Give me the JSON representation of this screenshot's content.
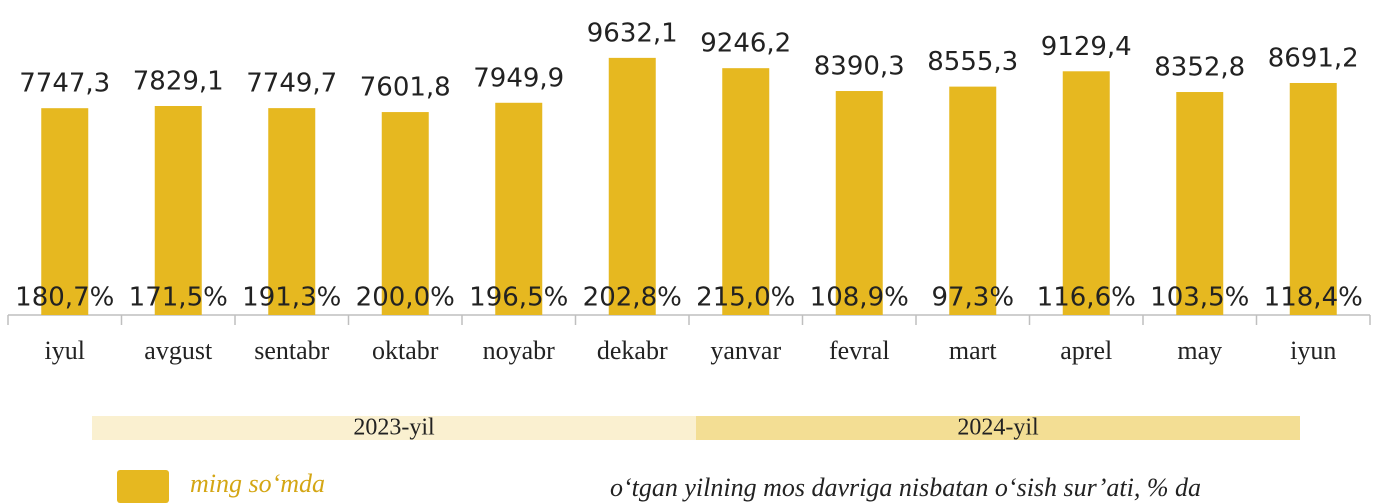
{
  "chart_data": {
    "type": "bar",
    "categories": [
      "iyul",
      "avgust",
      "sentabr",
      "oktabr",
      "noyabr",
      "dekabr",
      "yanvar",
      "fevral",
      "mart",
      "aprel",
      "may",
      "iyun"
    ],
    "series": [
      {
        "name": "ming so‘mda",
        "color": "#E6B820",
        "values": [
          7747.3,
          7829.1,
          7749.7,
          7601.8,
          7949.9,
          9632.1,
          9246.2,
          8390.3,
          8555.3,
          9129.4,
          8352.8,
          8691.2
        ],
        "value_labels": [
          "7747,3",
          "7829,1",
          "7749,7",
          "7601,8",
          "7949,9",
          "9632,1",
          "9246,2",
          "8390,3",
          "8555,3",
          "9129,4",
          "8352,8",
          "8691,2"
        ]
      },
      {
        "name": "o‘tgan yilning mos davriga nisbatan o‘sish sur’ati, % da",
        "values": [
          180.7,
          171.5,
          191.3,
          200.0,
          196.5,
          202.8,
          215.0,
          108.9,
          97.3,
          116.6,
          103.5,
          118.4
        ],
        "value_labels": [
          "180,7%",
          "171,5%",
          "191,3%",
          "200,0%",
          "196,5%",
          "202,8%",
          "215,0%",
          "108,9%",
          "97,3%",
          "116,6%",
          "103,5%",
          "118,4%"
        ]
      }
    ],
    "groups": [
      {
        "label": "2023-yil",
        "color": "#FAF0D0"
      },
      {
        "label": "2024-yil",
        "color": "#F3DE94"
      }
    ],
    "ylim": [
      0,
      11800
    ]
  }
}
